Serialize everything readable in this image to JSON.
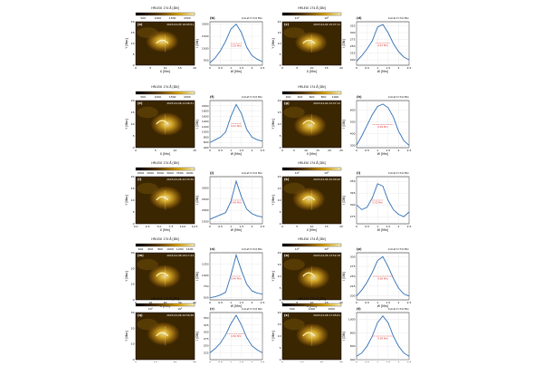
{
  "colorbar_label": "HRI-EUI 174 Å [DN]",
  "profile_note": "Cut at t=3.0 Min",
  "image_xlabel": "X [Mm]",
  "image_ylabel": "Y [Mm]",
  "profile_xlabel": "W [Mm]",
  "profile_ylabel": "I [DN]",
  "colors": {
    "profile_line": "#2f6fb3",
    "fwhm_marker": "#e03030"
  },
  "panels": [
    {
      "label": "(a)",
      "profile_label": "(b)",
      "timestamp": "2023-04-05 16:05:51",
      "colorbar_ticks": [
        "500",
        "1000",
        "1500",
        "2000"
      ],
      "x_ticks": [
        "0",
        "5",
        "10",
        "15",
        "20"
      ],
      "y_ticks": [
        "0",
        "5",
        "10",
        "15",
        "20"
      ],
      "chart_data": {
        "type": "line",
        "x": [
          0,
          0.25,
          0.5,
          0.75,
          1.0,
          1.25,
          1.5,
          1.75,
          2.0,
          2.25,
          2.5
        ],
        "y": [
          400,
          600,
          900,
          1300,
          1800,
          2000,
          1650,
          1050,
          700,
          550,
          450
        ],
        "ylim": [
          300,
          2100
        ],
        "yticks": [
          "500",
          "1000",
          "1500",
          "2000"
        ],
        "fwhm": "0.55 Mm"
      }
    },
    {
      "label": "(c)",
      "profile_label": "(d)",
      "timestamp": "2023-04-04 15:37:11",
      "colorbar_ticks": [
        "10²",
        "10³"
      ],
      "x_ticks": [
        "0",
        "5",
        "10",
        "15",
        "20"
      ],
      "y_ticks": [
        "0",
        "5",
        "10",
        "15",
        "20"
      ],
      "chart_data": {
        "type": "line",
        "x": [
          0,
          0.25,
          0.5,
          0.75,
          1.0,
          1.25,
          1.5,
          1.75,
          2.0,
          2.25,
          2.5
        ],
        "y": [
          195,
          215,
          240,
          270,
          320,
          330,
          300,
          260,
          230,
          210,
          200
        ],
        "ylim": [
          180,
          340
        ],
        "yticks": [
          "200",
          "225",
          "250",
          "275",
          "300",
          "325"
        ],
        "fwhm": "0.67 Mm"
      }
    },
    {
      "label": "(e)",
      "profile_label": "(f)",
      "timestamp": "2023-04-06 12:06:31",
      "colorbar_ticks": [
        "500",
        "1000",
        "1500",
        "2000"
      ],
      "x_ticks": [
        "0",
        "5",
        "10",
        "15"
      ],
      "y_ticks": [
        "0",
        "5",
        "10",
        "15",
        "20"
      ],
      "chart_data": {
        "type": "line",
        "x": [
          0,
          0.25,
          0.5,
          0.75,
          1.0,
          1.25,
          1.5,
          1.75,
          2.0,
          2.25,
          2.5
        ],
        "y": [
          600,
          700,
          800,
          1000,
          1600,
          2050,
          1700,
          1100,
          800,
          700,
          650
        ],
        "ylim": [
          400,
          2200
        ],
        "yticks": [
          "400",
          "600",
          "800",
          "1000",
          "1200",
          "1400",
          "1600",
          "1800",
          "2000"
        ],
        "fwhm": "0.47 Mm"
      }
    },
    {
      "label": "(g)",
      "profile_label": "(h)",
      "timestamp": "2023-04-04 22:47:12",
      "colorbar_ticks": [
        "200",
        "400",
        "600",
        "800",
        "1000"
      ],
      "x_ticks": [
        "0",
        "5",
        "10",
        "15",
        "20",
        "25"
      ],
      "y_ticks": [
        "0",
        "5",
        "10",
        "15",
        "20"
      ],
      "chart_data": {
        "type": "line",
        "x": [
          0,
          0.25,
          0.5,
          0.75,
          1.0,
          1.25,
          1.5,
          1.75,
          2.0,
          2.25,
          2.5
        ],
        "y": [
          300,
          380,
          470,
          560,
          630,
          650,
          620,
          540,
          420,
          340,
          300
        ],
        "ylim": [
          280,
          680
        ],
        "yticks": [
          "300",
          "400",
          "500",
          "600"
        ],
        "fwhm": "0.99 Mm"
      }
    },
    {
      "label": "(i)",
      "profile_label": "(j)",
      "timestamp": "2023-04-06 22:33:30",
      "colorbar_ticks": [
        "1500",
        "2000",
        "2500",
        "3000",
        "3500",
        "4000"
      ],
      "x_ticks": [
        "0.0",
        "2.5",
        "5.0",
        "7.5",
        "10.0",
        "12.5"
      ],
      "y_ticks": [
        "0",
        "5",
        "10",
        "15",
        "20"
      ],
      "chart_data": {
        "type": "line",
        "x": [
          0,
          0.25,
          0.5,
          0.75,
          1.0,
          1.25,
          1.5,
          1.75,
          2.0,
          2.25,
          2.5
        ],
        "y": [
          1600,
          1700,
          1800,
          1900,
          2400,
          3300,
          2600,
          2050,
          1850,
          1750,
          1700
        ],
        "ylim": [
          1400,
          3500
        ],
        "yticks": [
          "1500",
          "2000",
          "2500",
          "3000"
        ],
        "fwhm": "0.49 Mm"
      }
    },
    {
      "label": "(k)",
      "profile_label": "(l)",
      "timestamp": "2023-04-06 20:09:20",
      "colorbar_ticks": [
        "10²",
        "10³"
      ],
      "x_ticks": [
        "0",
        "5",
        "10",
        "15",
        "20"
      ],
      "y_ticks": [
        "0",
        "5",
        "10",
        "15",
        "20"
      ],
      "chart_data": {
        "type": "line",
        "x": [
          0,
          0.25,
          0.5,
          0.75,
          1.0,
          1.25,
          1.5,
          1.75,
          2.0,
          2.25,
          2.5
        ],
        "y": [
          300,
          290,
          295,
          315,
          345,
          340,
          310,
          290,
          280,
          275,
          285
        ],
        "ylim": [
          260,
          360
        ],
        "yticks": [
          "275",
          "300",
          "325",
          "350"
        ],
        "fwhm": "0.52 Mm"
      }
    },
    {
      "label": "(m)",
      "profile_label": "(n)",
      "timestamp": "2023-04-08 18:17:24",
      "colorbar_ticks": [
        "400",
        "600",
        "800",
        "1000",
        "1200",
        "1400"
      ],
      "x_ticks": [
        "0",
        "10",
        "20",
        "30",
        "40"
      ],
      "y_ticks": [
        "0",
        "10",
        "20",
        "30"
      ],
      "chart_data": {
        "type": "line",
        "x": [
          0,
          0.25,
          0.5,
          0.75,
          1.0,
          1.25,
          1.5,
          1.75,
          2.0,
          2.25,
          2.5
        ],
        "y": [
          500,
          520,
          560,
          620,
          1000,
          1450,
          1100,
          800,
          650,
          600,
          580
        ],
        "ylim": [
          450,
          1500
        ],
        "yticks": [
          "500",
          "750",
          "1000",
          "1250"
        ],
        "fwhm": "0.44 Mm"
      }
    },
    {
      "label": "(o)",
      "profile_label": "(p)",
      "timestamp": "2023-04-06 13:52:18",
      "colorbar_ticks": [
        "10²",
        "10³"
      ],
      "x_ticks": [
        "0",
        "5",
        "10",
        "15",
        "20"
      ],
      "y_ticks": [
        "0",
        "5",
        "10",
        "15",
        "20"
      ],
      "chart_data": {
        "type": "line",
        "x": [
          0,
          0.25,
          0.5,
          0.75,
          1.0,
          1.25,
          1.5,
          1.75,
          2.0,
          2.25,
          2.5
        ],
        "y": [
          200,
          215,
          235,
          260,
          290,
          300,
          275,
          245,
          220,
          205,
          200
        ],
        "ylim": [
          190,
          310
        ],
        "yticks": [
          "200",
          "225",
          "250",
          "275",
          "300"
        ],
        "fwhm": "0.96 Mm"
      }
    },
    {
      "label": "(q)",
      "profile_label": "(r)",
      "timestamp": "2023-04-06 20:56:38",
      "colorbar_ticks": [
        "10²",
        "10³"
      ],
      "x_ticks": [
        "0",
        "10",
        "20",
        "30"
      ],
      "y_ticks": [
        "0",
        "10",
        "20",
        "30"
      ],
      "chart_data": {
        "type": "line",
        "x": [
          0,
          0.25,
          0.5,
          0.75,
          1.0,
          1.25,
          1.5,
          1.75,
          2.0,
          2.25,
          2.5
        ],
        "y": [
          225,
          240,
          260,
          290,
          330,
          360,
          325,
          280,
          250,
          235,
          225
        ],
        "ylim": [
          200,
          370
        ],
        "yticks": [
          "225",
          "250",
          "275",
          "300",
          "325",
          "350"
        ],
        "fwhm": "0.83 Mm"
      }
    },
    {
      "label": "(s)",
      "profile_label": "(t)",
      "timestamp": "2023-04-08 17:05:01",
      "colorbar_ticks": [
        "500",
        "1000",
        "1500"
      ],
      "x_ticks": [
        "0",
        "10",
        "20",
        "30"
      ],
      "y_ticks": [
        "0",
        "5",
        "10",
        "15",
        "20"
      ],
      "chart_data": {
        "type": "line",
        "x": [
          0,
          0.25,
          0.5,
          0.75,
          1.0,
          1.25,
          1.5,
          1.75,
          2.0,
          2.25,
          2.5
        ],
        "y": [
          450,
          500,
          600,
          750,
          950,
          1050,
          950,
          750,
          600,
          500,
          450
        ],
        "ylim": [
          400,
          1100
        ],
        "yticks": [
          "400",
          "600",
          "800",
          "1000"
        ],
        "fwhm": "0.99 Mm"
      }
    }
  ]
}
